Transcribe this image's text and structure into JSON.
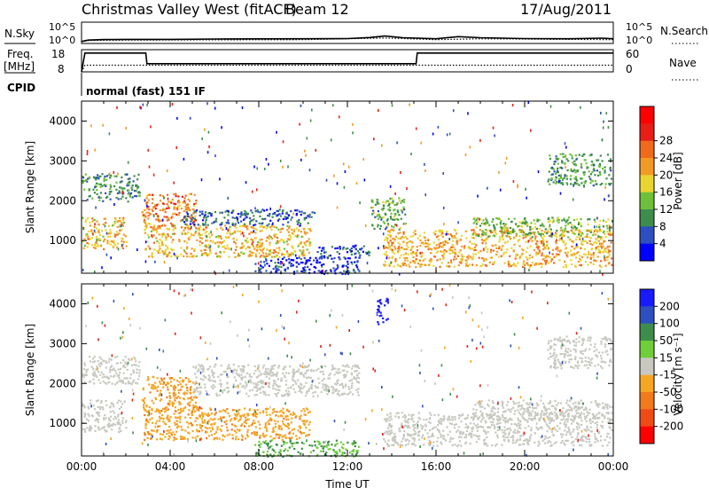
{
  "header": {
    "station": "Christmas Valley West (fitACF)",
    "beam": "Beam 12",
    "date": "17/Aug/2011"
  },
  "strips": {
    "nsky_label": "N.Sky",
    "nsky_ticks": [
      "10^5",
      "10^0"
    ],
    "nsearch_label": "N.Search",
    "nsearch_ticks": [
      "10^5",
      "10^0"
    ],
    "freq_label": "Freq.",
    "freq_unit": "[MHz]",
    "freq_ticks": [
      "18",
      "8"
    ],
    "nave_label": "Nave",
    "nave_ticks": [
      "60",
      "0"
    ],
    "cpid_label": "CPID",
    "cpid_text": "normal (fast) 151 IF"
  },
  "chart_data": [
    {
      "type": "line",
      "panel": "noise",
      "series": [
        {
          "name": "N.Sky",
          "style": "solid",
          "x": [
            0,
            0.3,
            1,
            2,
            4,
            6,
            8,
            10,
            12,
            13,
            13.7,
            14.5,
            16,
            17,
            18,
            20,
            22,
            23.5,
            24
          ],
          "y": [
            0.45,
            0.8,
            0.92,
            0.95,
            0.95,
            1.05,
            1.08,
            1.1,
            1.15,
            1.4,
            1.75,
            1.35,
            1.1,
            1.6,
            1.35,
            1.15,
            1.1,
            1.25,
            1.1
          ]
        },
        {
          "name": "N.Search",
          "style": "dotted",
          "x": [
            0,
            0.3,
            2,
            6,
            10,
            13.7,
            16,
            18,
            24
          ],
          "y": [
            0.45,
            0.7,
            0.8,
            0.85,
            0.9,
            1.3,
            0.9,
            1.1,
            0.9
          ]
        }
      ],
      "ylim": [
        0,
        5
      ]
    },
    {
      "type": "line",
      "panel": "frequency",
      "series": [
        {
          "name": "Freq.",
          "style": "solid",
          "x": [
            0,
            0.15,
            2.9,
            2.95,
            15.1,
            15.15,
            24
          ],
          "y": [
            8,
            16.5,
            16.5,
            11.7,
            11.7,
            16.5,
            16.5
          ]
        },
        {
          "name": "Nave",
          "style": "dotted",
          "x": [
            0,
            0.15,
            24
          ],
          "y": [
            8,
            11.0,
            11.0
          ]
        }
      ],
      "ylim": [
        8,
        18
      ]
    },
    {
      "type": "heatmap",
      "panel": "power",
      "xlabel": "",
      "ylabel": "Slant Range [km]",
      "xlim": [
        0,
        24
      ],
      "ylim": [
        180,
        4500
      ],
      "yticks": [
        1000,
        2000,
        3000,
        4000
      ],
      "colorbar": {
        "label": "Power [dB]",
        "ticks": [
          "4",
          "8",
          "12",
          "16",
          "20",
          "24",
          "28"
        ],
        "colors": [
          "#0000ff",
          "#2e4fbf",
          "#3d8d4d",
          "#6fbf3a",
          "#e8d531",
          "#f29a26",
          "#f06a1c",
          "#e81e16",
          "#ff0000"
        ]
      },
      "regions": [
        {
          "x0": 0,
          "x1": 2.6,
          "y0": 2000,
          "y1": 2700,
          "value": 12
        },
        {
          "x0": 0,
          "x1": 2.0,
          "y0": 800,
          "y1": 1600,
          "value": 22
        },
        {
          "x0": 2.7,
          "x1": 5.2,
          "y0": 1300,
          "y1": 2200,
          "value": 26
        },
        {
          "x0": 2.8,
          "x1": 10.3,
          "y0": 600,
          "y1": 1400,
          "value": 22
        },
        {
          "x0": 4.5,
          "x1": 10.5,
          "y0": 1400,
          "y1": 1800,
          "value": 9
        },
        {
          "x0": 10.5,
          "x1": 13.0,
          "y0": 600,
          "y1": 900,
          "value": 8
        },
        {
          "x0": 13.0,
          "x1": 14.6,
          "y0": 1300,
          "y1": 2100,
          "value": 14
        },
        {
          "x0": 13.6,
          "x1": 23.9,
          "y0": 350,
          "y1": 1300,
          "value": 23
        },
        {
          "x0": 17.6,
          "x1": 23.9,
          "y0": 1100,
          "y1": 1600,
          "value": 16
        },
        {
          "x0": 21.0,
          "x1": 23.9,
          "y0": 2400,
          "y1": 3200,
          "value": 13
        },
        {
          "x0": 7.8,
          "x1": 12.5,
          "y0": 180,
          "y1": 600,
          "value": 6
        }
      ]
    },
    {
      "type": "heatmap",
      "panel": "velocity",
      "xlabel": "Time UT",
      "ylabel": "Slant Range [km]",
      "xlim": [
        0,
        24
      ],
      "ylim": [
        180,
        4500
      ],
      "yticks": [
        1000,
        2000,
        3000,
        4000
      ],
      "xticks": [
        "00:00",
        "04:00",
        "08:00",
        "12:00",
        "16:00",
        "20:00",
        "00:00"
      ],
      "colorbar": {
        "label": "Velocity [m s⁻¹]",
        "ticks": [
          "200",
          "100",
          "50",
          "15",
          "-15",
          "-50",
          "-100",
          "-200"
        ],
        "colors": [
          "#1a1aff",
          "#2e4fbf",
          "#3d8d4d",
          "#6fcf3a",
          "#c8c8c0",
          "#f5a623",
          "#f07a1c",
          "#f04a16",
          "#ff0000"
        ]
      },
      "regions": [
        {
          "x0": 0,
          "x1": 2.6,
          "y0": 2000,
          "y1": 2700,
          "value": 0
        },
        {
          "x0": 0,
          "x1": 2.0,
          "y0": 800,
          "y1": 1600,
          "value": 0
        },
        {
          "x0": 2.7,
          "x1": 5.2,
          "y0": 1300,
          "y1": 2200,
          "value": -40
        },
        {
          "x0": 2.8,
          "x1": 10.3,
          "y0": 600,
          "y1": 1400,
          "value": -40
        },
        {
          "x0": 5.0,
          "x1": 12.5,
          "y0": 1700,
          "y1": 2500,
          "value": 0
        },
        {
          "x0": 13.6,
          "x1": 23.9,
          "y0": 450,
          "y1": 1300,
          "value": 0
        },
        {
          "x0": 17.6,
          "x1": 23.9,
          "y0": 1100,
          "y1": 1600,
          "value": 0
        },
        {
          "x0": 21.0,
          "x1": 23.9,
          "y0": 2400,
          "y1": 3200,
          "value": 0
        },
        {
          "x0": 7.8,
          "x1": 12.5,
          "y0": 180,
          "y1": 600,
          "value": 30
        },
        {
          "x0": 13.3,
          "x1": 13.8,
          "y0": 3500,
          "y1": 4200,
          "value": 200
        }
      ]
    }
  ]
}
